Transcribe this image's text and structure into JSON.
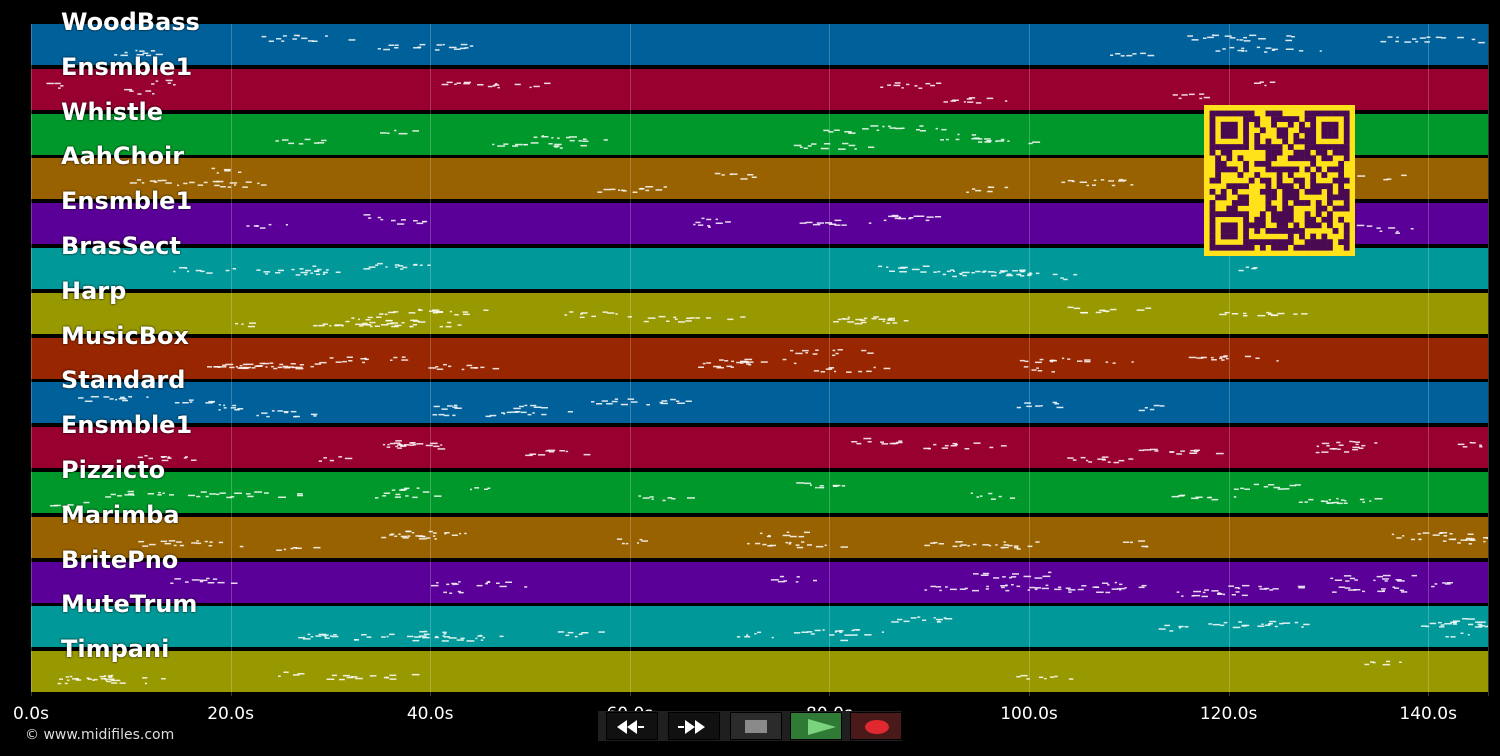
{
  "tracks": [
    {
      "name": "WoodBass",
      "color": "#00609a"
    },
    {
      "name": "Ensmble1",
      "color": "#980030"
    },
    {
      "name": "Whistle",
      "color": "#00982a"
    },
    {
      "name": "AahChoir",
      "color": "#986200"
    },
    {
      "name": "Ensmble1",
      "color": "#5a0098"
    },
    {
      "name": "BrasSect",
      "color": "#009898"
    },
    {
      "name": "Harp",
      "color": "#989800"
    },
    {
      "name": "MusicBox",
      "color": "#982600"
    },
    {
      "name": "Standard",
      "color": "#00609a"
    },
    {
      "name": "Ensmble1",
      "color": "#980030"
    },
    {
      "name": "Pizzicto",
      "color": "#00982a"
    },
    {
      "name": "Marimba",
      "color": "#986200"
    },
    {
      "name": "BritePno",
      "color": "#5a0098"
    },
    {
      "name": "MuteTrum",
      "color": "#009898"
    },
    {
      "name": "Timpani",
      "color": "#989800"
    }
  ],
  "timeline": {
    "ticks": [
      "0.0s",
      "20.0s",
      "40.0s",
      "60.0s",
      "80.0s",
      "100.0s",
      "120.0s",
      "140.0s"
    ],
    "tick_seconds": [
      0,
      20,
      40,
      60,
      80,
      100,
      120,
      140
    ]
  },
  "transport": {
    "rewind_icon": "rewind-icon",
    "fastforward_icon": "fast-forward-icon",
    "stop_icon": "stop-icon",
    "play_icon": "play-icon",
    "record_icon": "record-icon",
    "play_color": "#2f7a34",
    "record_color": "#4a1a1a"
  },
  "credit": "© www.midifiles.com",
  "qr": {
    "color": "#ffe21a",
    "dark": "#4a0a52"
  }
}
